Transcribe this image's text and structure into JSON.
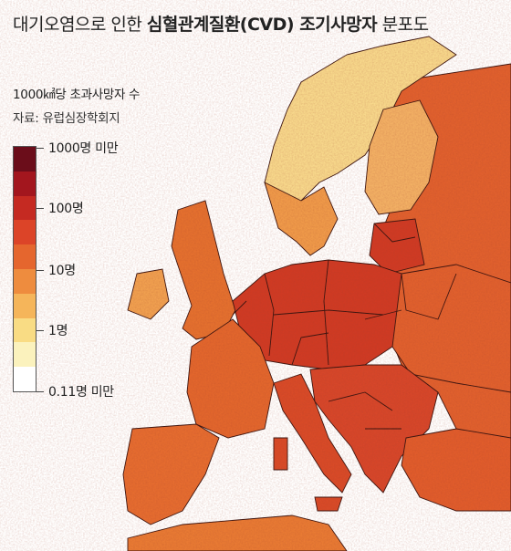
{
  "title": {
    "prefix": "대기오염으로 인한 ",
    "bold": "심혈관계질환(CVD) 조기사망자",
    "suffix": " 분포도"
  },
  "subtitle": "1000㎢당 초과사망자 수",
  "source": "자료: 유럽심장학회지",
  "legend": {
    "colors": [
      "#6b0d1a",
      "#a3161e",
      "#c52a22",
      "#dc4428",
      "#e5662e",
      "#ee8c3e",
      "#f5b55a",
      "#f9dc84",
      "#fbf2bd",
      "#ffffff"
    ],
    "labels": {
      "max": "1000명 미만",
      "l100": "100명",
      "l10": "10명",
      "l1": "1명",
      "min": "0.11명 미만"
    }
  },
  "map": {
    "sea_color": "#ffffff",
    "border_color": "#3a1410",
    "region_colors": {
      "scandinavia_north": "#f7d88c",
      "scandinavia_south": "#ef9a4a",
      "finland": "#f2b065",
      "russia": "#e0602e",
      "uk": "#e4702f",
      "ireland": "#f0a050",
      "central_europe": "#cf3a24",
      "france": "#e2662d",
      "iberia": "#e56c30",
      "italy": "#d84a28",
      "balkans": "#d6462a",
      "turkey": "#e05c2c",
      "north_africa": "#e87a34"
    }
  }
}
